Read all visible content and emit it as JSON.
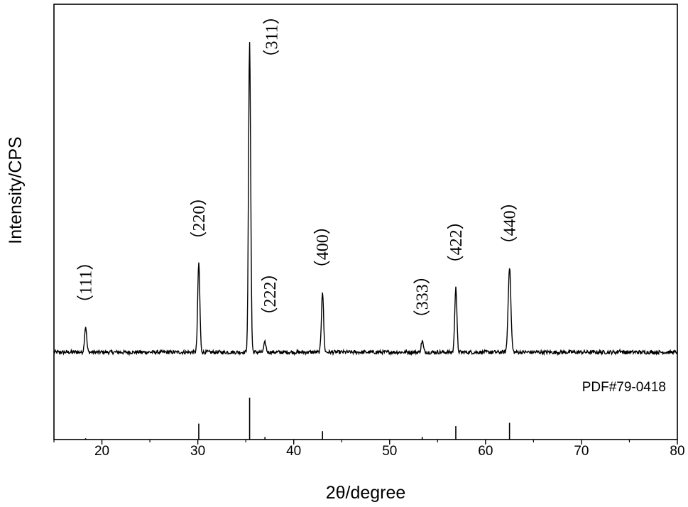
{
  "chart_data": {
    "type": "line",
    "xlabel": "2θ/degree",
    "ylabel": "Intensity/CPS",
    "xlim": [
      15,
      80
    ],
    "xticks": [
      20,
      30,
      40,
      50,
      60,
      70,
      80
    ],
    "ylim": [
      0,
      1
    ],
    "y_tick_labels_shown": false,
    "grid": false,
    "baseline_intensity": 0.03,
    "series": [
      {
        "peaks": [
          {
            "x": 18.3,
            "height": 0.11,
            "label": "（111）"
          },
          {
            "x": 30.1,
            "height": 0.31,
            "label": "（220）"
          },
          {
            "x": 31.7,
            "height": 0.015,
            "label": ""
          },
          {
            "x": 35.4,
            "height": 1.0,
            "label": "（311）"
          },
          {
            "x": 37.0,
            "height": 0.06,
            "label": "（222）"
          },
          {
            "x": 43.0,
            "height": 0.22,
            "label": "（400）"
          },
          {
            "x": 53.4,
            "height": 0.065,
            "label": "（333）"
          },
          {
            "x": 56.9,
            "height": 0.235,
            "label": "（422）"
          },
          {
            "x": 62.5,
            "height": 0.295,
            "label": "（440）"
          },
          {
            "x": 70.9,
            "height": 0.012,
            "label": ""
          },
          {
            "x": 74.0,
            "height": 0.035,
            "label": ""
          },
          {
            "x": 78.8,
            "height": 0.01,
            "label": ""
          }
        ]
      }
    ],
    "reference_pattern": {
      "label": "PDF#79-0418",
      "lines": [
        {
          "x": 18.3,
          "intensity": 0.03
        },
        {
          "x": 30.1,
          "intensity": 0.38
        },
        {
          "x": 35.4,
          "intensity": 1.0
        },
        {
          "x": 37.0,
          "intensity": 0.06
        },
        {
          "x": 43.0,
          "intensity": 0.2
        },
        {
          "x": 53.4,
          "intensity": 0.06
        },
        {
          "x": 56.9,
          "intensity": 0.32
        },
        {
          "x": 62.5,
          "intensity": 0.4
        }
      ]
    }
  }
}
